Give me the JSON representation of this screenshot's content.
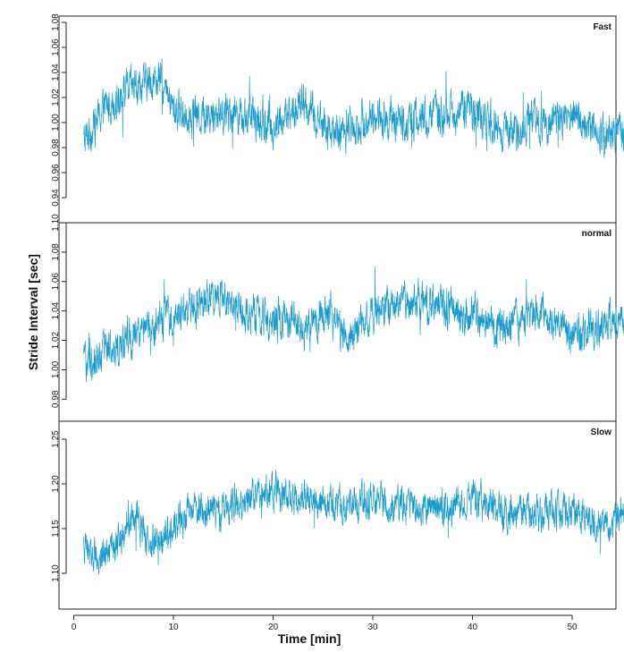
{
  "chart_data": {
    "type": "line",
    "xlabel": "Time [min]",
    "ylabel": "Stride Interval [sec]",
    "xlim": [
      0,
      57
    ],
    "x_ticks": [
      "0",
      "10",
      "20",
      "30",
      "40",
      "50"
    ],
    "line_color": "#1a9bcc",
    "panels": [
      {
        "label": "Fast",
        "ylim": [
          0.92,
          1.09
        ],
        "y_ticks": [
          "0.94",
          "0.96",
          "0.98",
          "1.00",
          "1.02",
          "1.04",
          "1.06",
          "1.08"
        ],
        "x_start": 1.0,
        "x_end": 56.2,
        "trend_x": [
          1,
          3,
          5,
          7,
          8.5,
          10,
          13,
          16,
          20,
          23,
          26,
          30,
          33,
          36,
          40,
          43,
          46,
          50,
          53,
          56
        ],
        "trend_y": [
          0.985,
          1.01,
          1.025,
          1.03,
          1.035,
          1.01,
          1.005,
          1.01,
          0.995,
          1.015,
          0.99,
          1.005,
          1.0,
          1.005,
          1.01,
          0.99,
          1.0,
          1.005,
          0.99,
          0.995
        ],
        "noise": 0.012
      },
      {
        "label": "normal",
        "ylim": [
          0.965,
          1.1
        ],
        "y_ticks": [
          "0.98",
          "1.00",
          "1.02",
          "1.04",
          "1.06",
          "1.08",
          "1.10"
        ],
        "x_start": 1.0,
        "x_end": 56.2,
        "trend_x": [
          1,
          3,
          5,
          8,
          11,
          14,
          17,
          20,
          23,
          26,
          27.5,
          30,
          33,
          36,
          40,
          43,
          47,
          50,
          53,
          56
        ],
        "trend_y": [
          1.005,
          1.01,
          1.02,
          1.03,
          1.04,
          1.05,
          1.04,
          1.035,
          1.03,
          1.04,
          1.02,
          1.04,
          1.045,
          1.045,
          1.035,
          1.03,
          1.04,
          1.02,
          1.03,
          1.035
        ],
        "noise": 0.01
      },
      {
        "label": "Slow",
        "ylim": [
          1.06,
          1.27
        ],
        "y_ticks": [
          "1.10",
          "1.15",
          "1.20",
          "1.25"
        ],
        "x_start": 1.0,
        "x_end": 56.2,
        "trend_x": [
          1,
          2.5,
          4,
          6,
          7.5,
          9,
          12,
          15,
          19,
          22,
          26,
          30,
          34,
          37,
          40,
          44,
          48,
          51,
          54,
          56
        ],
        "trend_y": [
          1.13,
          1.12,
          1.125,
          1.17,
          1.135,
          1.14,
          1.175,
          1.17,
          1.195,
          1.185,
          1.18,
          1.18,
          1.175,
          1.17,
          1.185,
          1.165,
          1.17,
          1.165,
          1.15,
          1.18
        ],
        "noise": 0.015
      }
    ]
  }
}
